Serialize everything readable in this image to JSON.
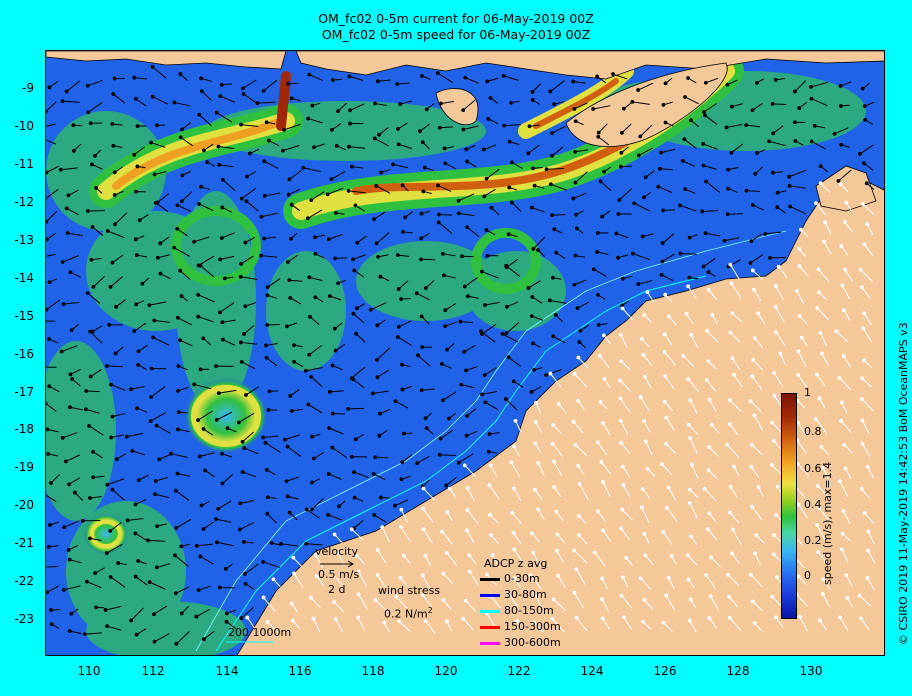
{
  "title": {
    "line1": "OM_fc02 0-5m current for 06-May-2019 00Z",
    "line2": "OM_fc02 0-5m speed for 06-May-2019 00Z"
  },
  "lat_axis": [
    "-9",
    "-10",
    "-11",
    "-12",
    "-13",
    "-14",
    "-15",
    "-16",
    "-17",
    "-18",
    "-19",
    "-20",
    "-21",
    "-22",
    "-23"
  ],
  "lon_axis": [
    "110",
    "112",
    "114",
    "116",
    "118",
    "120",
    "122",
    "124",
    "126",
    "128",
    "130"
  ],
  "colorbar": {
    "ticks": [
      "0",
      "0.2",
      "0.4",
      "0.6",
      "0.8",
      "1"
    ],
    "label": "speed (m/s), max=1.4"
  },
  "credit": "© CSIRO 2019   11-May-2019 14:42:53 BoM OceanMAPS v3",
  "legend": {
    "velocity_title": "velocity",
    "velocity_scale": "0.5 m/s",
    "velocity_time": "2 d",
    "wind_title": "wind stress",
    "wind_scale": "0.2 N/m",
    "wind_superscript": "2",
    "isobaths": "200  1000m",
    "adcp_title": "ADCP z avg",
    "adcp_items": [
      {
        "label": "0-30m",
        "color": "#000000"
      },
      {
        "label": "30-80m",
        "color": "#0000ff"
      },
      {
        "label": "80-150m",
        "color": "#00ffff"
      },
      {
        "label": "150-300m",
        "color": "#ff0000"
      },
      {
        "label": "300-600m",
        "color": "#ff00ff"
      }
    ]
  },
  "colors": {
    "background": "#00ffff",
    "land": "#f5c89a",
    "ocean_low": "#1d5ce6",
    "current_core": "#a02808"
  }
}
